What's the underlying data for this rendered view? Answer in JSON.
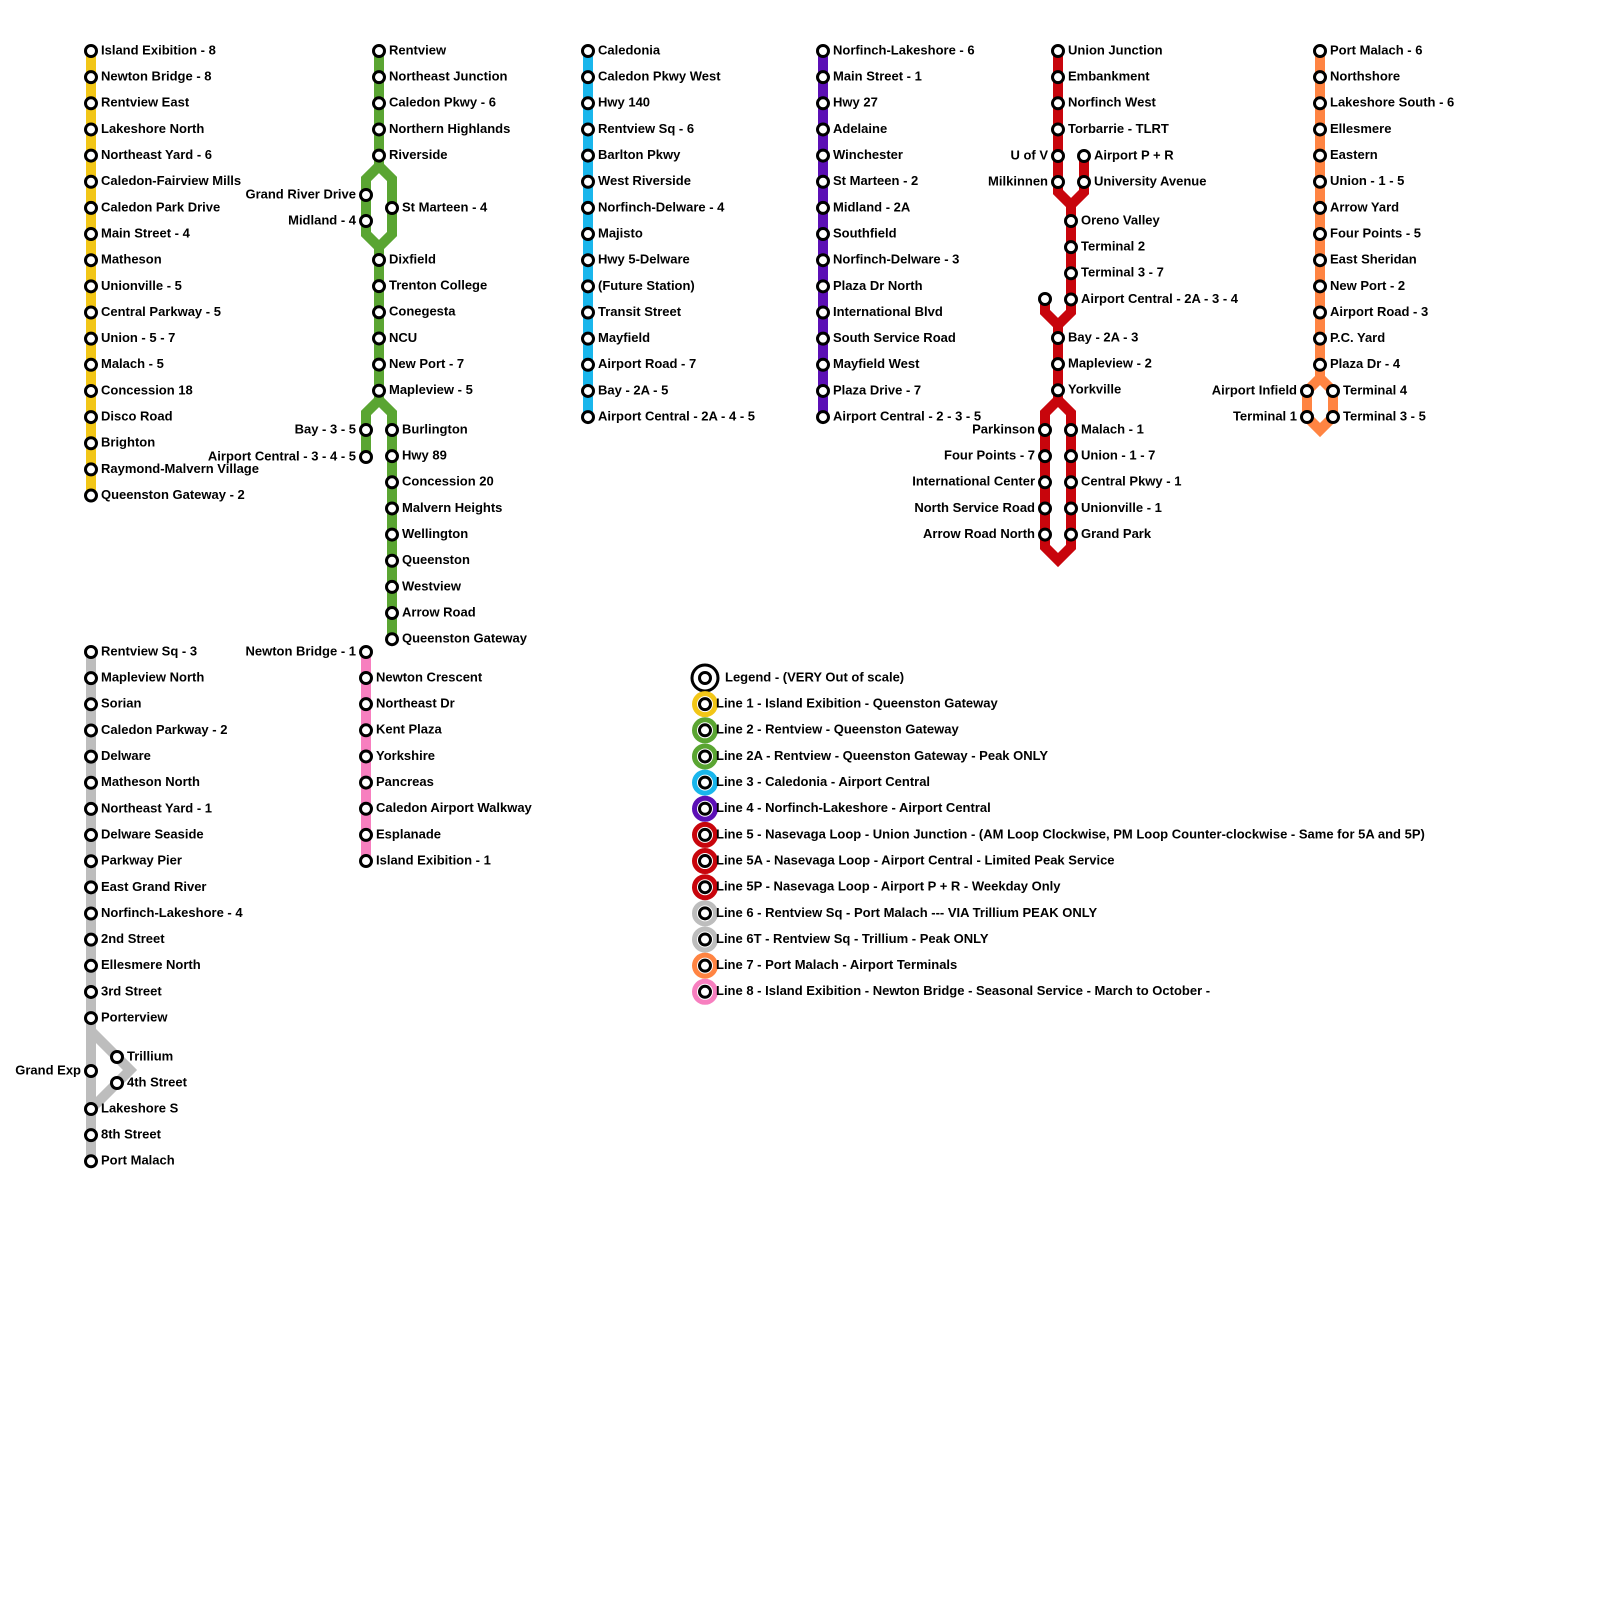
{
  "lines": [
    {
      "color": "#f2c617",
      "stations": [
        "Island Exibition - 8",
        "Newton Bridge - 8",
        "Rentview East",
        "Lakeshore North",
        "Northeast Yard - 6",
        "Caledon-Fairview Mills",
        "Caledon Park Drive",
        "Main Street - 4",
        "Matheson",
        "Unionville - 5",
        "Central Parkway - 5",
        "Union - 5 - 7",
        "Malach - 5",
        "Concession 18",
        "Disco Road",
        "Brighton",
        "Raymond-Malvern Village",
        "Queenston Gateway - 2"
      ]
    },
    {
      "color": "#5aa532",
      "stations": [
        "Rentview",
        "Northeast Junction",
        "Caledon Pkwy - 6",
        "Northern Highlands",
        "Riverside",
        "Grand River Drive",
        "Midland - 4",
        "St Marteen - 4",
        "Dixfield",
        "Trenton College",
        "Conegesta",
        "NCU",
        "New Port - 7",
        "Mapleview - 5",
        "Bay - 3 - 5",
        "Airport Central - 3 - 4 - 5",
        "Burlington",
        "Hwy 89",
        "Concession 20",
        "Malvern Heights",
        "Wellington",
        "Queenston",
        "Westview",
        "Arrow Road",
        "Queenston Gateway"
      ]
    },
    {
      "color": "#19b6ec",
      "stations": [
        "Caledonia",
        "Caledon Pkwy West",
        "Hwy 140",
        "Rentview Sq - 6",
        "Barlton Pkwy",
        "West Riverside",
        "Norfinch-Delware - 4",
        "Majisto",
        "Hwy 5-Delware",
        "(Future Station)",
        "Transit Street",
        "Mayfield",
        "Airport Road - 7",
        "Bay - 2A - 5",
        "Airport Central - 2A - 4 - 5"
      ]
    },
    {
      "color": "#5b0fb5",
      "stations": [
        "Norfinch-Lakeshore - 6",
        "Main Street - 1",
        "Hwy 27",
        "Adelaine",
        "Winchester",
        "St Marteen - 2",
        "Midland - 2A",
        "Southfield",
        "Norfinch-Delware - 3",
        "Plaza Dr North",
        "International Blvd",
        "South Service Road",
        "Mayfield West",
        "Plaza Drive - 7",
        "Airport Central - 2 - 3 - 5"
      ]
    },
    {
      "color": "#c8050c",
      "stations": [
        "Union Junction",
        "Embankment",
        "Norfinch West",
        "Torbarrie - TLRT",
        "U of V",
        "Milkinnen",
        "Airport P + R",
        "University Avenue",
        "Oreno Valley",
        "Terminal 2",
        "Terminal 3 - 7",
        "Airport Central - 2A - 3 - 4",
        null,
        "Bay - 2A - 3",
        "Mapleview - 2",
        "Yorkville",
        "Parkinson",
        "Four Points - 7",
        "International Center",
        "North Service Road",
        "Arrow Road North",
        "Malach - 1",
        "Union - 1 - 7",
        "Central Pkwy - 1",
        "Unionville - 1",
        "Grand Park"
      ]
    },
    {
      "color": "#bdbdbd",
      "stations": [
        "Rentview Sq - 3",
        "Mapleview North",
        "Sorian",
        "Caledon Parkway - 2",
        "Delware",
        "Matheson North",
        "Northeast Yard - 1",
        "Delware Seaside",
        "Parkway Pier",
        "East Grand River",
        "Norfinch-Lakeshore - 4",
        "2nd Street",
        "Ellesmere North",
        "3rd Street",
        "Porterview",
        "Grand Exp",
        "Trillium",
        "4th Street",
        "Lakeshore S",
        "8th Street",
        "Port Malach"
      ]
    },
    {
      "color": "#ff8442",
      "stations": [
        "Port Malach - 6",
        "Northshore",
        "Lakeshore South - 6",
        "Ellesmere",
        "Eastern",
        "Union - 1 - 5",
        "Arrow Yard",
        "Four Points - 5",
        "East Sheridan",
        "New Port - 2",
        "Airport Road - 3",
        "P.C. Yard",
        "Plaza Dr - 4",
        "Airport Infield",
        "Terminal 1",
        "Terminal 4",
        "Terminal 3 - 5"
      ]
    },
    {
      "color": "#f77fbf",
      "stations": [
        "Newton Bridge - 1",
        "Newton Crescent",
        "Northeast Dr",
        "Kent Plaza",
        "Yorkshire",
        "Pancreas",
        "Caledon Airport Walkway",
        "Esplanade",
        "Island Exibition - 1"
      ]
    }
  ],
  "legend": {
    "title": "Legend - (VERY Out of scale)",
    "entries": [
      {
        "label": "Line 1 - Island Exibition - Queenston Gateway",
        "color": "#f2c617"
      },
      {
        "label": "Line 2 - Rentview - Queenston Gateway",
        "color": "#5aa532"
      },
      {
        "label": "Line 2A - Rentview - Queenston Gateway - Peak ONLY",
        "color": "#5aa532"
      },
      {
        "label": "Line 3 - Caledonia - Airport Central",
        "color": "#19b6ec"
      },
      {
        "label": "Line 4 - Norfinch-Lakeshore - Airport Central",
        "color": "#5b0fb5"
      },
      {
        "label": "Line 5 - Nasevaga Loop - Union Junction - (AM Loop Clockwise, PM Loop Counter-clockwise - Same for 5A and 5P)",
        "color": "#c8050c"
      },
      {
        "label": "Line 5A - Nasevaga Loop - Airport Central - Limited Peak Service",
        "color": "#c8050c"
      },
      {
        "label": "Line 5P - Nasevaga Loop - Airport P + R - Weekday Only",
        "color": "#c8050c"
      },
      {
        "label": "Line 6 - Rentview Sq - Port Malach --- VIA Trillium PEAK ONLY",
        "color": "#bdbdbd"
      },
      {
        "label": "Line 6T - Rentview Sq - Trillium - Peak ONLY",
        "color": "#bdbdbd"
      },
      {
        "label": "Line 7 - Port Malach - Airport Terminals",
        "color": "#ff8442"
      },
      {
        "label": "Line 8 - Island Exibition - Newton Bridge - Seasonal Service - March to October -",
        "color": "#f77fbf"
      }
    ]
  }
}
